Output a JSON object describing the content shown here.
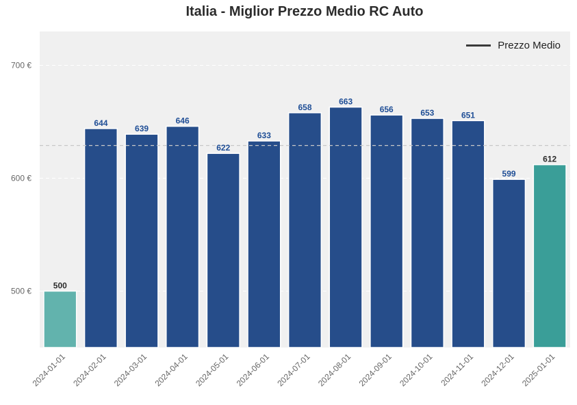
{
  "chart_data": {
    "type": "bar",
    "title": "Italia - Miglior Prezzo Medio RC Auto",
    "categories": [
      "2024-01-01",
      "2024-02-01",
      "2024-03-01",
      "2024-04-01",
      "2024-05-01",
      "2024-06-01",
      "2024-07-01",
      "2024-08-01",
      "2024-09-01",
      "2024-10-01",
      "2024-11-01",
      "2024-12-01",
      "2025-01-01"
    ],
    "values": [
      500,
      644,
      639,
      646,
      622,
      633,
      658,
      663,
      656,
      653,
      651,
      599,
      612
    ],
    "bar_colors": [
      "#62b3ad",
      "#264d8a",
      "#264d8a",
      "#264d8a",
      "#264d8a",
      "#264d8a",
      "#264d8a",
      "#264d8a",
      "#264d8a",
      "#264d8a",
      "#264d8a",
      "#264d8a",
      "#3a9e98"
    ],
    "label_colors": [
      "#2b2b2b",
      "#1f4e96",
      "#1f4e96",
      "#1f4e96",
      "#1f4e96",
      "#1f4e96",
      "#1f4e96",
      "#1f4e96",
      "#1f4e96",
      "#1f4e96",
      "#1f4e96",
      "#1f4e96",
      "#2b2b2b"
    ],
    "yticks": [
      500,
      600,
      700
    ],
    "ytick_labels": [
      "500 €",
      "600 €",
      "700 €"
    ],
    "ylim": [
      450,
      730
    ],
    "reference_line": 629,
    "legend": {
      "label": "Prezzo Medio",
      "position": "top-right"
    },
    "grid": true,
    "background": "#f0f0f0"
  }
}
